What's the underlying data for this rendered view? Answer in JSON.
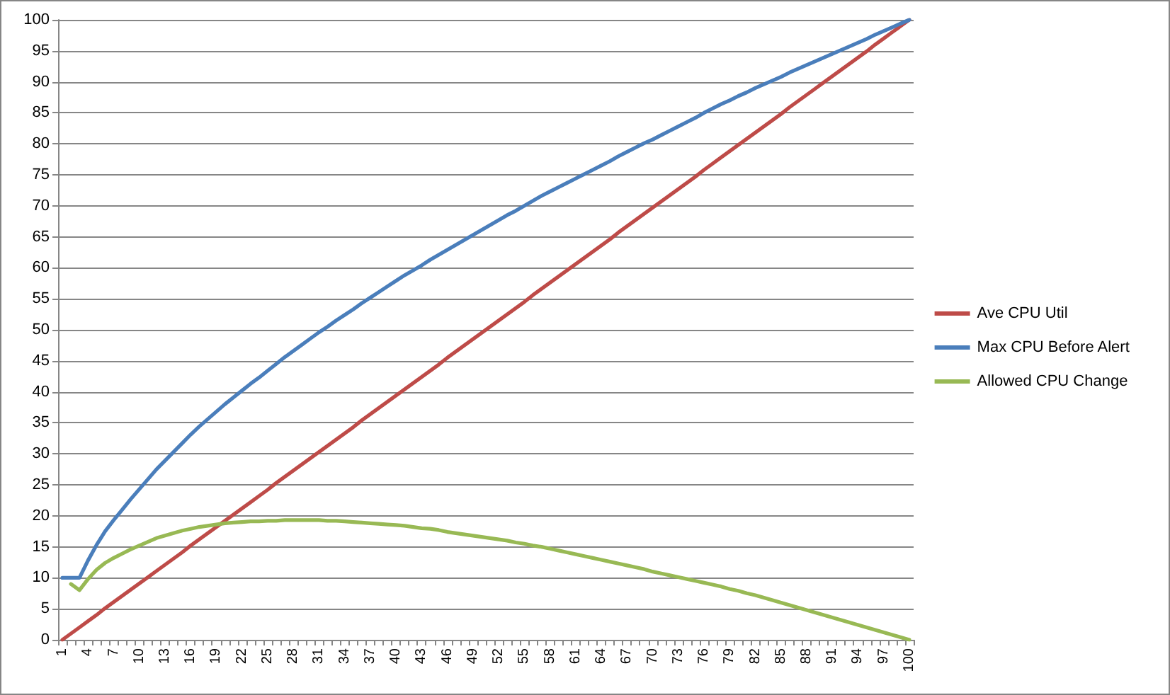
{
  "chart_data": {
    "type": "line",
    "categories": [
      "1",
      null,
      null,
      "4",
      null,
      null,
      "7",
      null,
      null,
      "10",
      null,
      null,
      "13",
      null,
      null,
      "16",
      null,
      null,
      "19",
      null,
      null,
      "22",
      null,
      null,
      "25",
      null,
      null,
      "28",
      null,
      null,
      "31",
      null,
      null,
      "34",
      null,
      null,
      "37",
      null,
      null,
      "40",
      null,
      null,
      "43",
      null,
      null,
      "46",
      null,
      null,
      "49",
      null,
      null,
      "52",
      null,
      null,
      "55",
      null,
      null,
      "58",
      null,
      null,
      "61",
      null,
      null,
      "64",
      null,
      null,
      "67",
      null,
      null,
      "70",
      null,
      null,
      "73",
      null,
      null,
      "76",
      null,
      null,
      "79",
      null,
      null,
      "82",
      null,
      null,
      "85",
      null,
      null,
      "88",
      null,
      null,
      "91",
      null,
      null,
      "94",
      null,
      null,
      "97",
      null,
      null,
      "100"
    ],
    "series": [
      {
        "name": "Ave CPU Util",
        "color": "#be4b48",
        "values": [
          0,
          1,
          2,
          3,
          4,
          5.1,
          6.1,
          7.1,
          8.1,
          9.1,
          10.1,
          11.1,
          12.1,
          13.1,
          14.1,
          15.2,
          16.2,
          17.2,
          18.2,
          19.2,
          20.2,
          21.2,
          22.2,
          23.2,
          24.2,
          25.3,
          26.3,
          27.3,
          28.3,
          29.3,
          30.3,
          31.3,
          32.3,
          33.3,
          34.3,
          35.4,
          36.4,
          37.4,
          38.4,
          39.4,
          40.4,
          41.4,
          42.4,
          43.4,
          44.4,
          45.5,
          46.5,
          47.5,
          48.5,
          49.5,
          50.5,
          51.5,
          52.5,
          53.5,
          54.5,
          55.6,
          56.6,
          57.6,
          58.6,
          59.6,
          60.6,
          61.6,
          62.6,
          63.6,
          64.6,
          65.7,
          66.7,
          67.7,
          68.7,
          69.7,
          70.7,
          71.7,
          72.7,
          73.7,
          74.7,
          75.8,
          76.8,
          77.8,
          78.8,
          79.8,
          80.8,
          81.8,
          82.8,
          83.8,
          84.8,
          85.9,
          86.9,
          87.9,
          88.9,
          89.9,
          90.9,
          91.9,
          92.9,
          93.9,
          94.9,
          96,
          97,
          98,
          99,
          100
        ]
      },
      {
        "name": "Max CPU Before Alert",
        "color": "#4a7ebb",
        "values": [
          10,
          10,
          10,
          12.8,
          15.3,
          17.5,
          19.3,
          21.0,
          22.7,
          24.3,
          25.9,
          27.5,
          28.9,
          30.3,
          31.7,
          33.1,
          34.4,
          35.6,
          36.8,
          38.0,
          39.1,
          40.2,
          41.3,
          42.3,
          43.4,
          44.5,
          45.6,
          46.6,
          47.6,
          48.6,
          49.6,
          50.5,
          51.5,
          52.4,
          53.3,
          54.3,
          55.2,
          56.1,
          57.0,
          57.9,
          58.8,
          59.6,
          60.4,
          61.3,
          62.1,
          62.9,
          63.7,
          64.5,
          65.3,
          66.1,
          66.9,
          67.7,
          68.5,
          69.2,
          70.0,
          70.8,
          71.6,
          72.3,
          73.0,
          73.7,
          74.4,
          75.1,
          75.8,
          76.5,
          77.2,
          78.0,
          78.7,
          79.4,
          80.1,
          80.7,
          81.4,
          82.1,
          82.8,
          83.5,
          84.2,
          85.0,
          85.7,
          86.4,
          87.0,
          87.7,
          88.3,
          89.0,
          89.6,
          90.2,
          90.8,
          91.5,
          92.1,
          92.7,
          93.3,
          93.9,
          94.5,
          95.1,
          95.7,
          96.3,
          96.9,
          97.6,
          98.2,
          98.8,
          99.4,
          100
        ]
      },
      {
        "name": "Allowed CPU Change",
        "color": "#98b954",
        "values": [
          null,
          9.0,
          8.0,
          9.8,
          11.3,
          12.4,
          13.2,
          13.9,
          14.6,
          15.2,
          15.8,
          16.4,
          16.8,
          17.2,
          17.6,
          17.9,
          18.2,
          18.4,
          18.6,
          18.8,
          18.9,
          19.0,
          19.1,
          19.1,
          19.2,
          19.2,
          19.3,
          19.3,
          19.3,
          19.3,
          19.3,
          19.2,
          19.2,
          19.1,
          19.0,
          18.9,
          18.8,
          18.7,
          18.6,
          18.5,
          18.4,
          18.2,
          18.0,
          17.9,
          17.7,
          17.4,
          17.2,
          17.0,
          16.8,
          16.6,
          16.4,
          16.2,
          16.0,
          15.7,
          15.5,
          15.2,
          15.0,
          14.7,
          14.4,
          14.1,
          13.8,
          13.5,
          13.2,
          12.9,
          12.6,
          12.3,
          12.0,
          11.7,
          11.4,
          11.0,
          10.7,
          10.4,
          10.1,
          9.8,
          9.5,
          9.2,
          8.9,
          8.6,
          8.2,
          7.9,
          7.5,
          7.2,
          6.8,
          6.4,
          6.0,
          5.6,
          5.2,
          4.8,
          4.4,
          4.0,
          3.6,
          3.2,
          2.8,
          2.4,
          2.0,
          1.6,
          1.2,
          0.8,
          0.4,
          0
        ]
      }
    ],
    "ylim": [
      0,
      100
    ],
    "yticks": [
      0,
      5,
      10,
      15,
      20,
      25,
      30,
      35,
      40,
      45,
      50,
      55,
      60,
      65,
      70,
      75,
      80,
      85,
      90,
      95,
      100
    ],
    "grid": "y",
    "legend": "right",
    "marker": "none",
    "line_style": "solid"
  }
}
